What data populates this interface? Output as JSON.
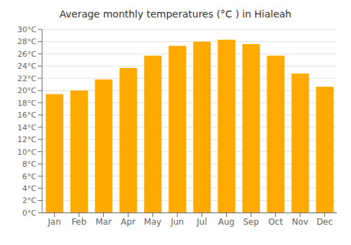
{
  "chart_data": {
    "type": "bar",
    "title": "Average monthly temperatures (°C ) in Hialeah",
    "categories": [
      "Jan",
      "Feb",
      "Mar",
      "Apr",
      "May",
      "Jun",
      "Jul",
      "Aug",
      "Sep",
      "Oct",
      "Nov",
      "Dec"
    ],
    "values": [
      19.4,
      20.0,
      21.8,
      23.7,
      25.7,
      27.3,
      28.0,
      28.3,
      27.6,
      25.7,
      22.8,
      20.6
    ],
    "color": "#FFAA00",
    "ylim": [
      0,
      30
    ],
    "yticks": [
      {
        "value": 0,
        "label": "0°C"
      },
      {
        "value": 2,
        "label": "2°C"
      },
      {
        "value": 4,
        "label": "4°C"
      },
      {
        "value": 6,
        "label": "6°C"
      },
      {
        "value": 8,
        "label": "8°C"
      },
      {
        "value": 10,
        "label": "10°C"
      },
      {
        "value": 12,
        "label": "12°C"
      },
      {
        "value": 14,
        "label": "14°C"
      },
      {
        "value": 16,
        "label": "16°C"
      },
      {
        "value": 18,
        "label": "18°C"
      },
      {
        "value": 20,
        "label": "20°C"
      },
      {
        "value": 22,
        "label": "22°C"
      },
      {
        "value": 24,
        "label": "24°C"
      },
      {
        "value": 26,
        "label": "26°C"
      },
      {
        "value": 28,
        "label": "28°C"
      },
      {
        "value": 30,
        "label": "30°C"
      }
    ],
    "grid": true
  }
}
